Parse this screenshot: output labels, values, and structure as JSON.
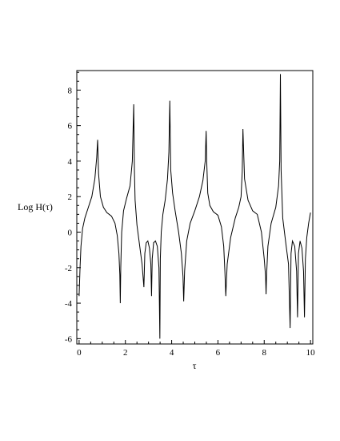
{
  "chart_data": {
    "type": "line",
    "title": "",
    "xlabel": "τ",
    "ylabel": "Log H(τ)",
    "xlim": [
      -0.1,
      10.1
    ],
    "ylim": [
      -6.3,
      9.1
    ],
    "x_ticks": [
      0,
      2,
      4,
      6,
      8,
      10
    ],
    "y_ticks": [
      -6,
      -4,
      -2,
      0,
      2,
      4,
      6,
      8
    ],
    "x_tick_labels": [
      "0",
      "2",
      "4",
      "6",
      "8",
      "10"
    ],
    "y_tick_labels": [
      "-6",
      "-4",
      "-2",
      "0",
      "2",
      "4",
      "6",
      "8"
    ],
    "grid": false,
    "legend": "none",
    "line_color": "#000000",
    "series": [
      {
        "x": [
          0.0,
          0.04,
          0.08,
          0.15,
          0.25,
          0.4,
          0.55,
          0.68,
          0.76,
          0.8,
          0.84,
          0.92,
          1.05,
          1.2,
          1.4,
          1.55,
          1.65,
          1.72,
          1.76,
          1.78,
          1.8,
          1.84,
          1.92,
          2.05,
          2.2,
          2.3,
          2.36,
          2.39,
          2.42,
          2.5,
          2.62,
          2.72,
          2.8,
          2.84,
          2.9,
          2.97,
          3.04,
          3.1,
          3.13,
          3.16,
          3.22,
          3.3,
          3.38,
          3.45,
          3.49,
          3.51,
          3.55,
          3.62,
          3.72,
          3.82,
          3.88,
          3.92,
          3.96,
          4.04,
          4.15,
          4.3,
          4.42,
          4.49,
          4.52,
          4.56,
          4.65,
          4.8,
          5.0,
          5.2,
          5.35,
          5.45,
          5.49,
          5.52,
          5.56,
          5.65,
          5.8,
          6.0,
          6.15,
          6.25,
          6.3,
          6.34,
          6.4,
          6.55,
          6.75,
          6.9,
          7.0,
          7.05,
          7.08,
          7.15,
          7.3,
          7.5,
          7.7,
          7.88,
          8.0,
          8.06,
          8.08,
          8.1,
          8.16,
          8.3,
          8.5,
          8.62,
          8.67,
          8.7,
          8.73,
          8.8,
          8.95,
          9.05,
          9.12,
          9.16,
          9.22,
          9.32,
          9.4,
          9.44,
          9.48,
          9.55,
          9.63,
          9.7,
          9.74,
          9.78,
          9.84,
          9.92,
          10.0
        ],
        "y": [
          -3.6,
          -2.0,
          -0.8,
          0.2,
          0.8,
          1.4,
          2.0,
          3.0,
          4.2,
          5.2,
          3.3,
          2.0,
          1.4,
          1.1,
          0.9,
          0.5,
          -0.2,
          -1.2,
          -2.4,
          -4.0,
          -2.0,
          0.0,
          1.2,
          1.9,
          2.6,
          4.0,
          7.2,
          3.5,
          1.8,
          0.4,
          -0.8,
          -1.8,
          -3.1,
          -1.2,
          -0.6,
          -0.5,
          -0.9,
          -1.8,
          -3.6,
          -1.5,
          -0.6,
          -0.5,
          -0.8,
          -2.0,
          -6.0,
          -1.5,
          0.0,
          1.0,
          1.8,
          3.0,
          4.5,
          7.4,
          3.5,
          2.2,
          1.2,
          0.0,
          -1.2,
          -2.5,
          -3.9,
          -2.2,
          -0.5,
          0.5,
          1.2,
          2.0,
          2.9,
          4.0,
          5.7,
          3.8,
          2.2,
          1.5,
          1.15,
          0.95,
          0.3,
          -0.8,
          -2.2,
          -3.6,
          -1.8,
          -0.3,
          0.8,
          1.4,
          2.0,
          3.4,
          5.8,
          3.0,
          1.8,
          1.2,
          1.0,
          0.0,
          -1.5,
          -2.5,
          -3.5,
          -2.5,
          -0.8,
          0.5,
          1.4,
          2.6,
          4.0,
          8.9,
          3.5,
          0.8,
          -0.8,
          -1.8,
          -5.4,
          -1.2,
          -0.5,
          -0.8,
          -2.2,
          -4.8,
          -1.2,
          -0.5,
          -0.9,
          -2.2,
          -4.8,
          -1.5,
          -0.3,
          0.5,
          1.1
        ]
      }
    ]
  }
}
